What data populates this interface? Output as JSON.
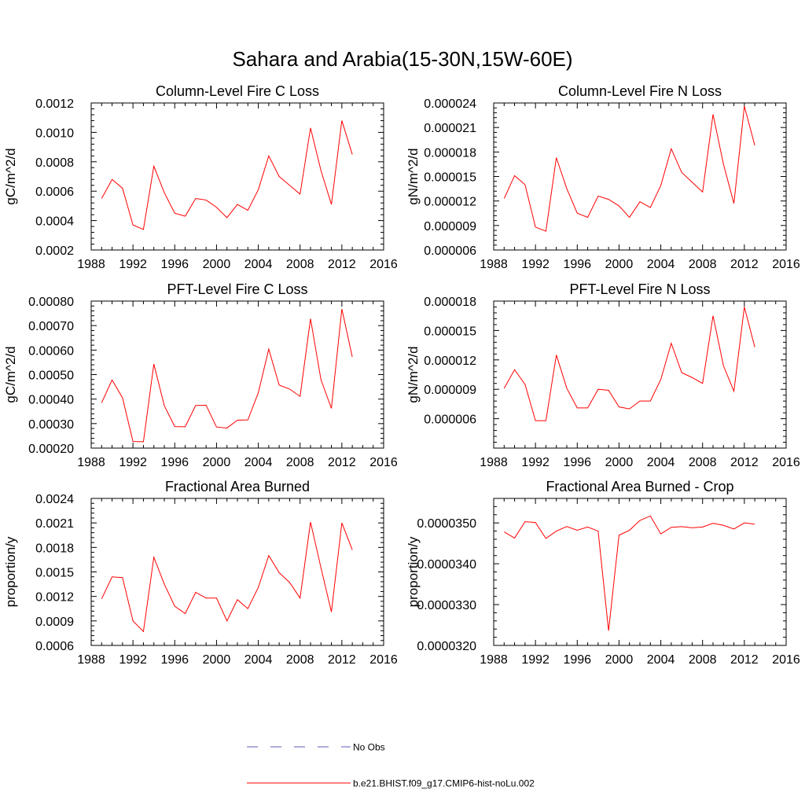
{
  "figure": {
    "title": "Sahara and Arabia(15-30N,15W-60E)",
    "line_color": "#ff0000",
    "obs_color": "#5b5bb8"
  },
  "legend": {
    "obs_label": "No Obs",
    "model_label": "b.e21.BHIST.f09_g17.CMIP6-hist-noLu.002"
  },
  "chart_data": [
    {
      "type": "line",
      "title": "Column-Level Fire C Loss",
      "ylabel": "gC/m^2/d",
      "xlim": [
        1988,
        2016
      ],
      "xticks": [
        "1988",
        "1992",
        "1996",
        "2000",
        "2004",
        "2008",
        "2012",
        "2016"
      ],
      "ylim": [
        0.0002,
        0.0012
      ],
      "yticks": [
        "0.0002",
        "0.0004",
        "0.0006",
        "0.0008",
        "0.0010",
        "0.0012"
      ],
      "x": [
        1989,
        1990,
        1991,
        1992,
        1993,
        1994,
        1995,
        1996,
        1997,
        1998,
        1999,
        2000,
        2001,
        2002,
        2003,
        2004,
        2005,
        2006,
        2007,
        2008,
        2009,
        2010,
        2011,
        2012,
        2013
      ],
      "series": [
        {
          "values": [
            0.00055,
            0.00068,
            0.00062,
            0.00037,
            0.00034,
            0.00077,
            0.00059,
            0.00045,
            0.00043,
            0.00055,
            0.00054,
            0.00049,
            0.00042,
            0.00051,
            0.00047,
            0.00061,
            0.00084,
            0.0007,
            0.00064,
            0.00058,
            0.00103,
            0.00074,
            0.00051,
            0.00108,
            0.00085
          ]
        }
      ]
    },
    {
      "type": "line",
      "title": "Column-Level Fire N Loss",
      "ylabel": "gN/m^2/d",
      "xlim": [
        1988,
        2016
      ],
      "xticks": [
        "1988",
        "1992",
        "1996",
        "2000",
        "2004",
        "2008",
        "2012",
        "2016"
      ],
      "ylim": [
        6e-06,
        2.4e-05
      ],
      "yticks": [
        "0.000006",
        "0.000009",
        "0.000012",
        "0.000015",
        "0.000018",
        "0.000021",
        "0.000024"
      ],
      "x": [
        1989,
        1990,
        1991,
        1992,
        1993,
        1994,
        1995,
        1996,
        1997,
        1998,
        1999,
        2000,
        2001,
        2002,
        2003,
        2004,
        2005,
        2006,
        2007,
        2008,
        2009,
        2010,
        2011,
        2012,
        2013
      ],
      "series": [
        {
          "values": [
            1.23e-05,
            1.51e-05,
            1.4e-05,
            8.8e-06,
            8.3e-06,
            1.73e-05,
            1.35e-05,
            1.05e-05,
            1e-05,
            1.26e-05,
            1.22e-05,
            1.14e-05,
            1e-05,
            1.19e-05,
            1.12e-05,
            1.39e-05,
            1.84e-05,
            1.55e-05,
            1.43e-05,
            1.31e-05,
            2.26e-05,
            1.65e-05,
            1.17e-05,
            2.36e-05,
            1.88e-05
          ]
        }
      ]
    },
    {
      "type": "line",
      "title": "PFT-Level Fire C Loss",
      "ylabel": "gC/m^2/d",
      "xlim": [
        1988,
        2016
      ],
      "xticks": [
        "1988",
        "1992",
        "1996",
        "2000",
        "2004",
        "2008",
        "2012",
        "2016"
      ],
      "ylim": [
        0.0002,
        0.0008
      ],
      "yticks": [
        "0.00020",
        "0.00030",
        "0.00040",
        "0.00050",
        "0.00060",
        "0.00070",
        "0.00080"
      ],
      "x": [
        1989,
        1990,
        1991,
        1992,
        1993,
        1994,
        1995,
        1996,
        1997,
        1998,
        1999,
        2000,
        2001,
        2002,
        2003,
        2004,
        2005,
        2006,
        2007,
        2008,
        2009,
        2010,
        2011,
        2012,
        2013
      ],
      "series": [
        {
          "values": [
            0.000385,
            0.000478,
            0.000405,
            0.000227,
            0.000226,
            0.000543,
            0.000373,
            0.000288,
            0.000287,
            0.000374,
            0.000375,
            0.000286,
            0.000282,
            0.000314,
            0.000315,
            0.000426,
            0.000604,
            0.000457,
            0.000441,
            0.000411,
            0.000728,
            0.000479,
            0.000362,
            0.000768,
            0.000572
          ]
        }
      ]
    },
    {
      "type": "line",
      "title": "PFT-Level Fire N Loss",
      "ylabel": "gN/m^2/d",
      "xlim": [
        1988,
        2016
      ],
      "xticks": [
        "1988",
        "1992",
        "1996",
        "2000",
        "2004",
        "2008",
        "2012",
        "2016"
      ],
      "ylim": [
        3e-06,
        1.8e-05
      ],
      "yticks": [
        "0.000006",
        "0.000009",
        "0.000012",
        "0.000015",
        "0.000018"
      ],
      "x": [
        1989,
        1990,
        1991,
        1992,
        1993,
        1994,
        1995,
        1996,
        1997,
        1998,
        1999,
        2000,
        2001,
        2002,
        2003,
        2004,
        2005,
        2006,
        2007,
        2008,
        2009,
        2010,
        2011,
        2012,
        2013
      ],
      "series": [
        {
          "values": [
            9.1e-06,
            1.1e-05,
            9.5e-06,
            5.8e-06,
            5.8e-06,
            1.25e-05,
            9.1e-06,
            7.1e-06,
            7.1e-06,
            9e-06,
            8.9e-06,
            7.2e-06,
            7e-06,
            7.8e-06,
            7.8e-06,
            1e-05,
            1.37e-05,
            1.07e-05,
            1.02e-05,
            9.6e-06,
            1.65e-05,
            1.14e-05,
            8.8e-06,
            1.74e-05,
            1.33e-05
          ]
        }
      ]
    },
    {
      "type": "line",
      "title": "Fractional Area Burned",
      "ylabel": "proportion/y",
      "xlim": [
        1988,
        2016
      ],
      "xticks": [
        "1988",
        "1992",
        "1996",
        "2000",
        "2004",
        "2008",
        "2012",
        "2016"
      ],
      "ylim": [
        0.0006,
        0.0024
      ],
      "yticks": [
        "0.0006",
        "0.0009",
        "0.0012",
        "0.0015",
        "0.0018",
        "0.0021",
        "0.0024"
      ],
      "x": [
        1989,
        1990,
        1991,
        1992,
        1993,
        1994,
        1995,
        1996,
        1997,
        1998,
        1999,
        2000,
        2001,
        2002,
        2003,
        2004,
        2005,
        2006,
        2007,
        2008,
        2009,
        2010,
        2011,
        2012,
        2013
      ],
      "series": [
        {
          "values": [
            0.00117,
            0.00144,
            0.00143,
            0.0009,
            0.00077,
            0.00168,
            0.00135,
            0.00108,
            0.00099,
            0.00125,
            0.00118,
            0.00118,
            0.0009,
            0.00116,
            0.00105,
            0.00131,
            0.0017,
            0.00149,
            0.00137,
            0.00118,
            0.00211,
            0.00155,
            0.00101,
            0.0021,
            0.00177
          ]
        }
      ]
    },
    {
      "type": "line",
      "title": "Fractional Area Burned - Crop",
      "ylabel": "proportion/y",
      "xlim": [
        1988,
        2016
      ],
      "xticks": [
        "1988",
        "1992",
        "1996",
        "2000",
        "2004",
        "2008",
        "2012",
        "2016"
      ],
      "ylim": [
        3.2e-05,
        3.56e-05
      ],
      "yticks": [
        "0.0000320",
        "0.0000330",
        "0.0000340",
        "0.0000350"
      ],
      "x": [
        1989,
        1990,
        1991,
        1992,
        1993,
        1994,
        1995,
        1996,
        1997,
        1998,
        1999,
        2000,
        2001,
        2002,
        2003,
        2004,
        2005,
        2006,
        2007,
        2008,
        2009,
        2010,
        2011,
        2012,
        2013
      ],
      "series": [
        {
          "values": [
            3.478e-05,
            3.463e-05,
            3.503e-05,
            3.501e-05,
            3.462e-05,
            3.48e-05,
            3.491e-05,
            3.482e-05,
            3.49e-05,
            3.48e-05,
            3.236e-05,
            3.47e-05,
            3.482e-05,
            3.506e-05,
            3.517e-05,
            3.473e-05,
            3.489e-05,
            3.491e-05,
            3.488e-05,
            3.49e-05,
            3.499e-05,
            3.494e-05,
            3.485e-05,
            3.5e-05,
            3.497e-05
          ]
        }
      ]
    }
  ]
}
